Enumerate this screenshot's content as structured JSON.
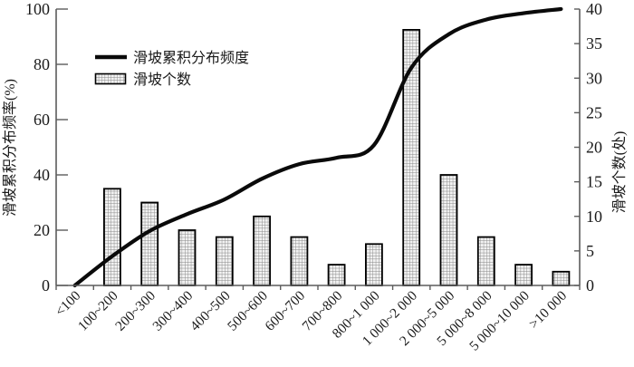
{
  "chart_data": {
    "type": "bar",
    "title": "",
    "categories": [
      "<100",
      "100~200",
      "200~300",
      "300~400",
      "400~500",
      "500~600",
      "600~700",
      "700~800",
      "800~1 000",
      "1 000~2 000",
      "2 000~5 000",
      "5 000~8 000",
      "5 000~10 000",
      ">10 000"
    ],
    "series": [
      {
        "name": "滑坡累积分布频度",
        "type": "line",
        "axis": "left",
        "values": [
          0,
          10.6,
          19.7,
          25.8,
          31.1,
          38.6,
          43.9,
          46.2,
          50.8,
          78.8,
          90.9,
          96.2,
          98.5,
          100
        ]
      },
      {
        "name": "滑坡个数",
        "type": "bar",
        "axis": "right",
        "values": [
          0,
          14,
          12,
          8,
          7,
          10,
          7,
          3,
          6,
          37,
          16,
          7,
          3,
          2
        ]
      }
    ],
    "xlabel": "",
    "ylabel_left": "滑坡累积分布频率(%)",
    "ylabel_right": "滑坡个数(处)",
    "left_axis": {
      "min": 0,
      "max": 100,
      "ticks": [
        0,
        20,
        40,
        60,
        80,
        100
      ]
    },
    "right_axis": {
      "min": 0,
      "max": 40,
      "ticks": [
        0,
        5,
        10,
        15,
        20,
        25,
        30,
        35,
        40
      ]
    },
    "legend": {
      "position": "top-left",
      "entries": [
        "滑坡累积分布频度",
        "滑坡个数"
      ]
    },
    "grid": false,
    "colors": {
      "line": "#0a0a0a",
      "bar_border": "#000000",
      "bar_fill_bg": "#f2f2f2",
      "bar_hatch": "#878787",
      "axis": "#5c5c5c",
      "text": "#1a1a1a"
    }
  }
}
